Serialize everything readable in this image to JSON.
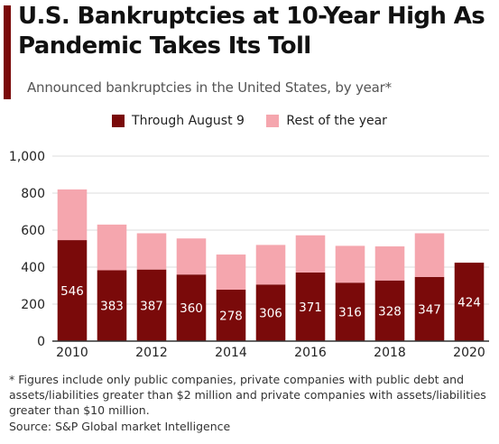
{
  "title": "U.S. Bankruptcies at 10-Year High As Pandemic Takes Its Toll",
  "subtitle": "Announced bankruptcies in the United States, by year*",
  "footnote": "* Figures include only public companies, private companies with public debt and assets/liabilities greater than $2 million and private companies with assets/liabilities greater than $10 million.",
  "source": "Source: S&P Global market Intelligence",
  "colors": {
    "accent": "#7a0a0a",
    "through": "#7a0a0a",
    "rest": "#f5a6ae"
  },
  "chart_data": {
    "type": "bar",
    "stacked": true,
    "categories": [
      "2010",
      "2011",
      "2012",
      "2013",
      "2014",
      "2015",
      "2016",
      "2017",
      "2018",
      "2019",
      "2020"
    ],
    "x_tick_labels": [
      "2010",
      "2012",
      "2014",
      "2016",
      "2018",
      "2020"
    ],
    "series": [
      {
        "name": "Through August 9",
        "color": "#7a0a0a",
        "values": [
          546,
          383,
          387,
          360,
          278,
          306,
          371,
          316,
          328,
          347,
          424
        ]
      },
      {
        "name": "Rest of the year",
        "color": "#f5a6ae",
        "values": [
          274,
          247,
          196,
          195,
          190,
          214,
          201,
          199,
          184,
          236,
          0
        ]
      }
    ],
    "ylim": [
      0,
      1000
    ],
    "yticks": [
      0,
      200,
      400,
      600,
      800,
      1000
    ],
    "ytick_labels": [
      "0",
      "200",
      "400",
      "600",
      "800",
      "1,000"
    ],
    "grid": true,
    "legend_position": "top-center",
    "data_labels_series": "Through August 9"
  }
}
